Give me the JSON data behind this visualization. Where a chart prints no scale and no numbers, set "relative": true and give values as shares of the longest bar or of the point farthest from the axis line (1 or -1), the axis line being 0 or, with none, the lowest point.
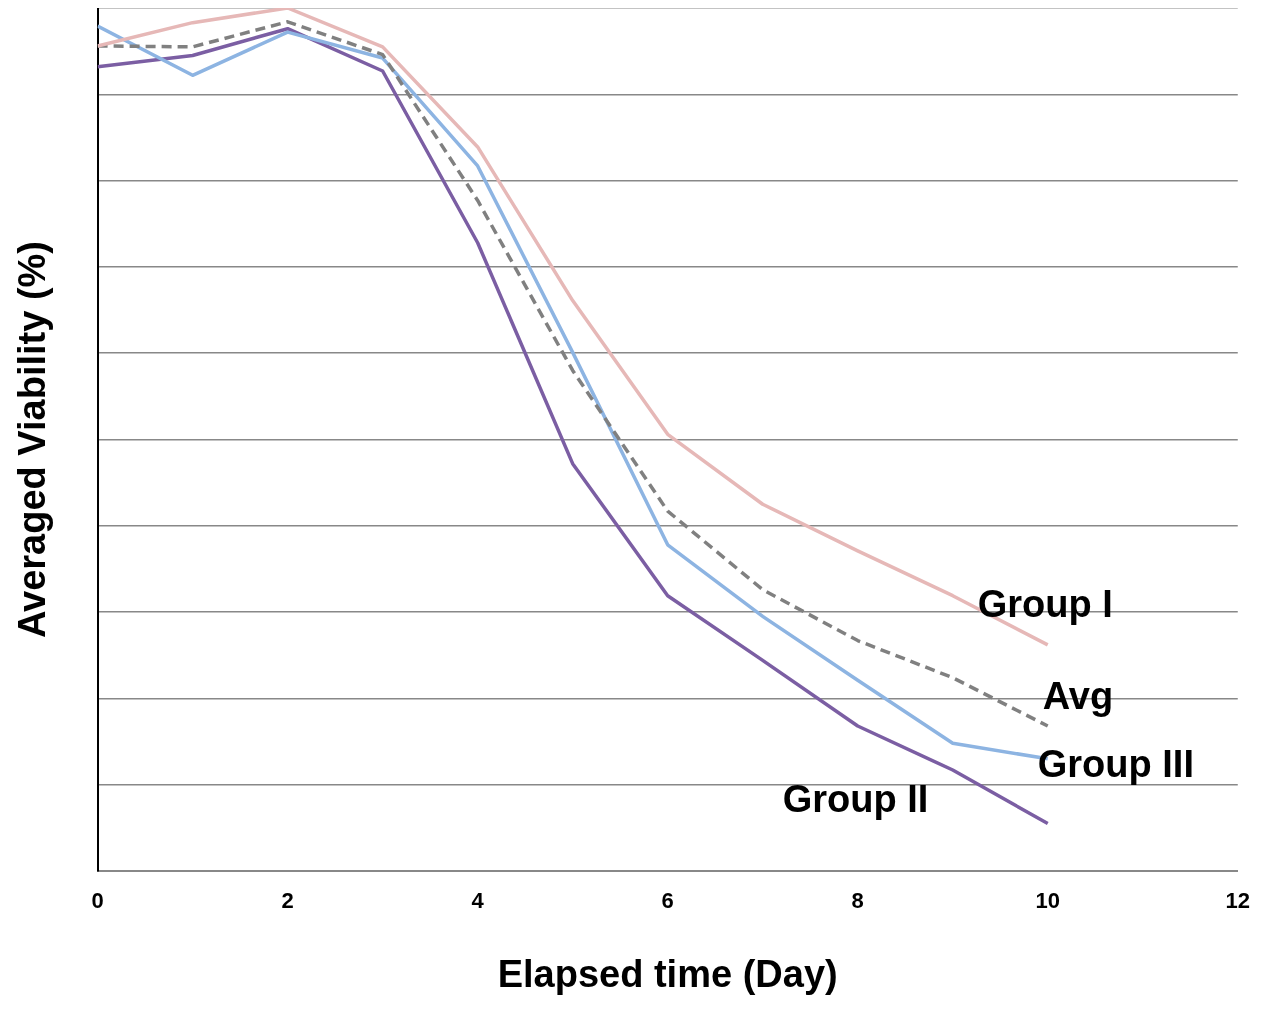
{
  "chart_data": {
    "type": "line",
    "xlabel": "Elapsed time (Day)",
    "ylabel": "Averaged Viability (%)",
    "relative": true,
    "x": [
      0,
      1,
      2,
      3,
      4,
      5,
      6,
      7,
      8,
      9,
      10
    ],
    "xlim": [
      0,
      12
    ],
    "xticks": [
      0,
      2,
      4,
      6,
      8,
      10,
      12
    ],
    "grid": "y",
    "legend": false,
    "marker": "none",
    "series": [
      {
        "name": "Group I",
        "color": "#e6b8b7",
        "line_style": "solid",
        "values": [
          0.956,
          0.983,
          1,
          0.955,
          0.839,
          0.661,
          0.506,
          0.425,
          0.371,
          0.319,
          0.262
        ]
      },
      {
        "name": "Avg",
        "color": "#808080",
        "line_style": "dashed",
        "values": [
          0.956,
          0.955,
          0.984,
          0.946,
          0.777,
          0.58,
          0.417,
          0.326,
          0.267,
          0.224,
          0.168
        ]
      },
      {
        "name": "Group III",
        "color": "#8db4e2",
        "line_style": "solid",
        "values": [
          0.979,
          0.922,
          0.972,
          0.942,
          0.817,
          0.601,
          0.378,
          0.295,
          0.221,
          0.148,
          0.13
        ]
      },
      {
        "name": "Group II",
        "color": "#7b5ea3",
        "line_style": "solid",
        "values": [
          0.932,
          0.945,
          0.976,
          0.927,
          0.728,
          0.472,
          0.319,
          0.244,
          0.168,
          0.117,
          0.055
        ]
      }
    ]
  }
}
